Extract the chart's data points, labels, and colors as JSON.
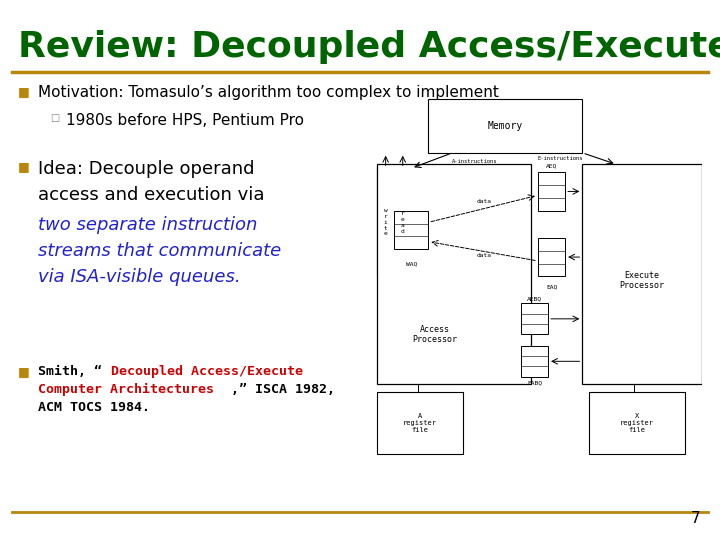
{
  "title": "Review: Decoupled Access/Execute",
  "title_color": "#006400",
  "title_fontsize": 26,
  "bg_color": "#ffffff",
  "separator_color": "#B8860B",
  "bullet_color": "#B8860B",
  "bullet1_text": "Motivation: Tomasulo’s algorithm too complex to implement",
  "bullet1_sub": "1980s before HPS, Pentium Pro",
  "bullet2_line1": "Idea: Decouple operand",
  "bullet2_line2": "access and execution via",
  "bullet2_line3": "two separate instruction",
  "bullet2_line4": "streams that communicate",
  "bullet2_line5": "via ISA-visible queues.",
  "bullet3_prefix": "Smith, “",
  "bullet3_colored": "Decoupled Access/Execute\nComputer Architectures",
  "bullet3_suffix1": ",” ISCA 1982,",
  "bullet3_suffix2": "ACM TOCS 1984.",
  "black_color": "#000000",
  "blue_color": "#2222cc",
  "red_color": "#cc0000",
  "page_num": "7"
}
